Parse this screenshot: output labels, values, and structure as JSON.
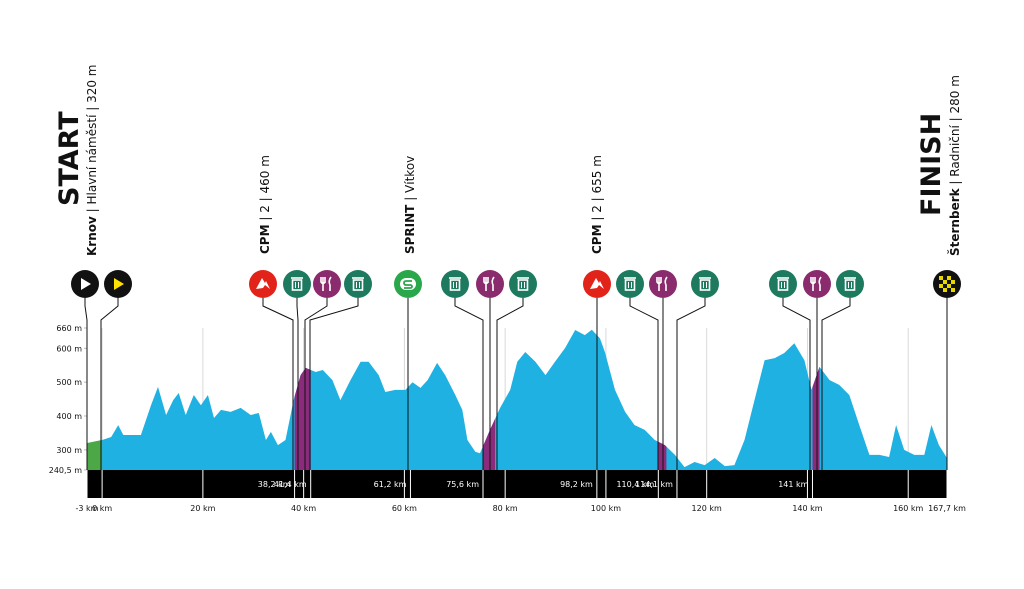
{
  "chart_data": {
    "type": "area",
    "x": [
      -3,
      0,
      1.8,
      3.2,
      4.2,
      7.7,
      9.7,
      11.1,
      12.7,
      14.1,
      15.2,
      16.6,
      18.2,
      19.6,
      21.0,
      22.2,
      23.6,
      25.5,
      27.5,
      29.5,
      31.1,
      32.5,
      33.5,
      34.9,
      36.4,
      38.0,
      39.4,
      40.4,
      42.4,
      43.8,
      45.7,
      47.3,
      49.3,
      51.3,
      52.9,
      54.9,
      56.2,
      58.2,
      60.2,
      61.6,
      63.2,
      64.6,
      66.5,
      68.1,
      70.1,
      71.5,
      72.5,
      74.1,
      75.0,
      77.0,
      79.0,
      81.0,
      82.4,
      84.0,
      86.0,
      88.0,
      89.9,
      91.9,
      93.9,
      95.8,
      97.2,
      98.8,
      99.8,
      101.8,
      103.8,
      105.7,
      107.7,
      109.7,
      111.7,
      113.7,
      115.6,
      117.6,
      119.6,
      121.6,
      123.6,
      125.5,
      127.5,
      129.5,
      131.5,
      133.5,
      135.4,
      137.4,
      139.4,
      140.8,
      142.4,
      144.4,
      146.3,
      148.3,
      150.3,
      152.3,
      154.3,
      156.2,
      157.6,
      159.2,
      161.2,
      163.2,
      164.6,
      166.1,
      167.7
    ],
    "values": [
      320,
      329,
      338,
      373,
      344,
      344,
      432,
      486,
      403,
      447,
      468,
      403,
      462,
      432,
      462,
      394,
      418,
      412,
      424,
      403,
      409,
      329,
      353,
      314,
      329,
      447,
      521,
      542,
      530,
      536,
      506,
      447,
      506,
      560,
      560,
      521,
      471,
      477,
      477,
      500,
      483,
      506,
      557,
      521,
      462,
      418,
      329,
      294,
      290,
      359,
      424,
      477,
      560,
      589,
      560,
      521,
      560,
      601,
      654,
      639,
      655,
      630,
      589,
      477,
      412,
      373,
      359,
      329,
      314,
      285,
      249,
      264,
      255,
      276,
      252,
      255,
      329,
      447,
      565,
      571,
      586,
      615,
      565,
      477,
      545,
      506,
      492,
      462,
      373,
      285,
      285,
      279,
      373,
      300,
      285,
      285,
      373,
      314,
      276
    ],
    "color": "#1fb1e2",
    "segments": [
      {
        "from": -3,
        "to": 0,
        "color": "#4ca847"
      },
      {
        "from": 38.2,
        "to": 41.4,
        "color": "#8a2b7c"
      },
      {
        "from": 75.6,
        "to": 78.0,
        "color": "#8a2b7c"
      },
      {
        "from": 110.4,
        "to": 112.0,
        "color": "#8a2b7c"
      },
      {
        "from": 141.0,
        "to": 142.4,
        "color": "#8a2b7c"
      }
    ],
    "xlim": [
      -3,
      167.7
    ],
    "ylim": [
      240.5,
      660
    ],
    "xticks": [
      {
        "value": -3,
        "label": "-3 km"
      },
      {
        "value": 0,
        "label": "0 km"
      },
      {
        "value": 20,
        "label": "20 km"
      },
      {
        "value": 40,
        "label": "40 km"
      },
      {
        "value": 60,
        "label": "60 km"
      },
      {
        "value": 80,
        "label": "80 km"
      },
      {
        "value": 100,
        "label": "100 km"
      },
      {
        "value": 120,
        "label": "120 km"
      },
      {
        "value": 140,
        "label": "140 km"
      },
      {
        "value": 160,
        "label": "160 km"
      },
      {
        "value": 167.7,
        "label": "167,7 km"
      }
    ],
    "yticks": [
      {
        "value": 240.5,
        "label": "240,5 m"
      },
      {
        "value": 300,
        "label": "300 m"
      },
      {
        "value": 400,
        "label": "400 m"
      },
      {
        "value": 500,
        "label": "500 m"
      },
      {
        "value": 600,
        "label": "600 m"
      },
      {
        "value": 660,
        "label": "660 m"
      }
    ],
    "points": [
      {
        "value": 38.2,
        "label": "38,2 km"
      },
      {
        "value": 41.4,
        "label": "41,4 km"
      },
      {
        "value": 61.2,
        "label": "61,2 km"
      },
      {
        "value": 75.6,
        "label": "75,6 km"
      },
      {
        "value": 98.2,
        "label": "98,2 km"
      },
      {
        "value": 110.4,
        "label": "110,4 km"
      },
      {
        "value": 114.1,
        "label": "114,1 km"
      },
      {
        "value": 141,
        "label": "141 km"
      }
    ]
  },
  "labels": {
    "start": {
      "title": "START",
      "place": "Krnov",
      "detail": "| Hlavní náměstí | 320 m"
    },
    "finish": {
      "title": "FINISH",
      "place": "Šternberk",
      "detail": "| Radniční | 280 m"
    },
    "climbs": [
      {
        "place": "CPM",
        "detail": "| 2 | 460 m"
      },
      {
        "place": "SPRINT",
        "detail": "| Vítkov"
      },
      {
        "place": "CPM",
        "detail": "| 2 | 655 m"
      }
    ]
  }
}
